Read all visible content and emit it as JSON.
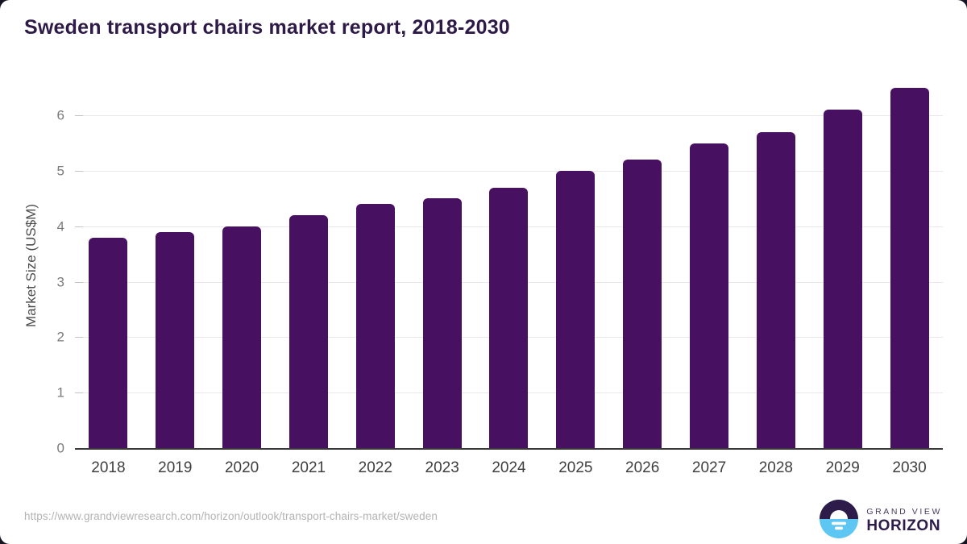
{
  "header": {
    "title": "Sweden transport chairs market report, 2018-2030"
  },
  "chart_data": {
    "type": "bar",
    "title": "Sweden transport chairs market report, 2018-2030",
    "categories": [
      "2018",
      "2019",
      "2020",
      "2021",
      "2022",
      "2023",
      "2024",
      "2025",
      "2026",
      "2027",
      "2028",
      "2029",
      "2030"
    ],
    "values": [
      3.8,
      3.9,
      4.0,
      4.2,
      4.4,
      4.5,
      4.7,
      5.0,
      5.2,
      5.5,
      5.7,
      6.1,
      6.5
    ],
    "xlabel": "",
    "ylabel": "Market Size (US$M)",
    "yticks": [
      0,
      1,
      2,
      3,
      4,
      5,
      6
    ],
    "ylim": [
      0,
      6.65
    ],
    "grid": "horizontal",
    "legend": "none"
  },
  "footer": {
    "source_url": "https://www.grandviewresearch.com/horizon/outlook/transport-chairs-market/sweden",
    "logo": {
      "line1": "GRAND VIEW",
      "line2": "HORIZON"
    }
  },
  "colors": {
    "bar": "#481061",
    "title": "#2e1a47",
    "axis_line": "#3a3a3a",
    "x_label": "#3f3f3f",
    "y_label": "#7b7b7b",
    "gridline": "#e8e8e8",
    "url": "#b3b3b3",
    "logo_dark": "#2d1c4a",
    "logo_blue": "#5ec6f2"
  }
}
